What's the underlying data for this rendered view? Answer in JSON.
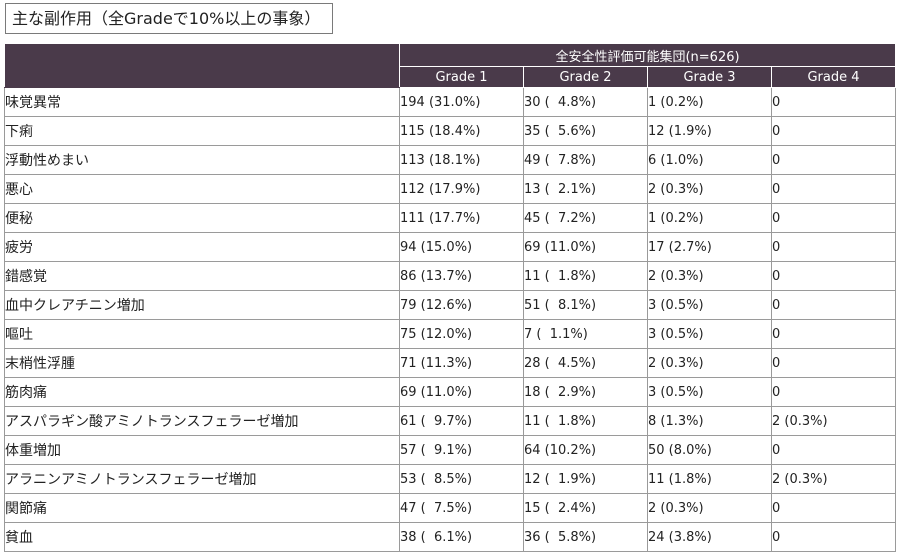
{
  "title": "主な副作用（全Gradeで10%以上の事象）",
  "table": {
    "group_header": "全安全性評価可能集団(n=626)",
    "grade_headers": [
      "Grade 1",
      "Grade 2",
      "Grade 3",
      "Grade 4"
    ],
    "rows": [
      {
        "name": "味覚異常",
        "g1": "194 (31.0%)",
        "g2": "30 (  4.8%)",
        "g3": "1 (0.2%)",
        "g4": "0"
      },
      {
        "name": "下痢",
        "g1": "115 (18.4%)",
        "g2": "35 (  5.6%)",
        "g3": "12 (1.9%)",
        "g4": "0"
      },
      {
        "name": "浮動性めまい",
        "g1": "113 (18.1%)",
        "g2": "49 (  7.8%)",
        "g3": "6 (1.0%)",
        "g4": "0"
      },
      {
        "name": "悪心",
        "g1": "112 (17.9%)",
        "g2": "13 (  2.1%)",
        "g3": "2 (0.3%)",
        "g4": "0"
      },
      {
        "name": "便秘",
        "g1": "111 (17.7%)",
        "g2": "45 (  7.2%)",
        "g3": "1 (0.2%)",
        "g4": "0"
      },
      {
        "name": "疲労",
        "g1": "94 (15.0%)",
        "g2": "69 (11.0%)",
        "g3": "17 (2.7%)",
        "g4": "0"
      },
      {
        "name": "錯感覚",
        "g1": "86 (13.7%)",
        "g2": "11 (  1.8%)",
        "g3": "2 (0.3%)",
        "g4": "0"
      },
      {
        "name": "血中クレアチニン増加",
        "g1": "79 (12.6%)",
        "g2": "51 (  8.1%)",
        "g3": "3 (0.5%)",
        "g4": "0"
      },
      {
        "name": "嘔吐",
        "g1": "75 (12.0%)",
        "g2": "7 (  1.1%)",
        "g3": "3 (0.5%)",
        "g4": "0"
      },
      {
        "name": "末梢性浮腫",
        "g1": "71 (11.3%)",
        "g2": "28 (  4.5%)",
        "g3": "2 (0.3%)",
        "g4": "0"
      },
      {
        "name": "筋肉痛",
        "g1": "69 (11.0%)",
        "g2": "18 (  2.9%)",
        "g3": "3 (0.5%)",
        "g4": "0"
      },
      {
        "name": "アスパラギン酸アミノトランスフェラーゼ増加",
        "g1": "61 (  9.7%)",
        "g2": "11 (  1.8%)",
        "g3": "8 (1.3%)",
        "g4": "2 (0.3%)"
      },
      {
        "name": "体重増加",
        "g1": "57 (  9.1%)",
        "g2": "64 (10.2%)",
        "g3": "50 (8.0%)",
        "g4": "0"
      },
      {
        "name": "アラニンアミノトランスフェラーゼ増加",
        "g1": "53 (  8.5%)",
        "g2": "12 (  1.9%)",
        "g3": "11 (1.8%)",
        "g4": "2 (0.3%)"
      },
      {
        "name": "関節痛",
        "g1": "47 (  7.5%)",
        "g2": "15 (  2.4%)",
        "g3": "2 (0.3%)",
        "g4": "0"
      },
      {
        "name": "貧血",
        "g1": "38 (  6.1%)",
        "g2": "36 (  5.8%)",
        "g3": "24 (3.8%)",
        "g4": "0"
      }
    ]
  },
  "colors": {
    "header_bg": "#4a3a4a",
    "header_text": "#ffffff",
    "border": "#9a9a9a"
  }
}
